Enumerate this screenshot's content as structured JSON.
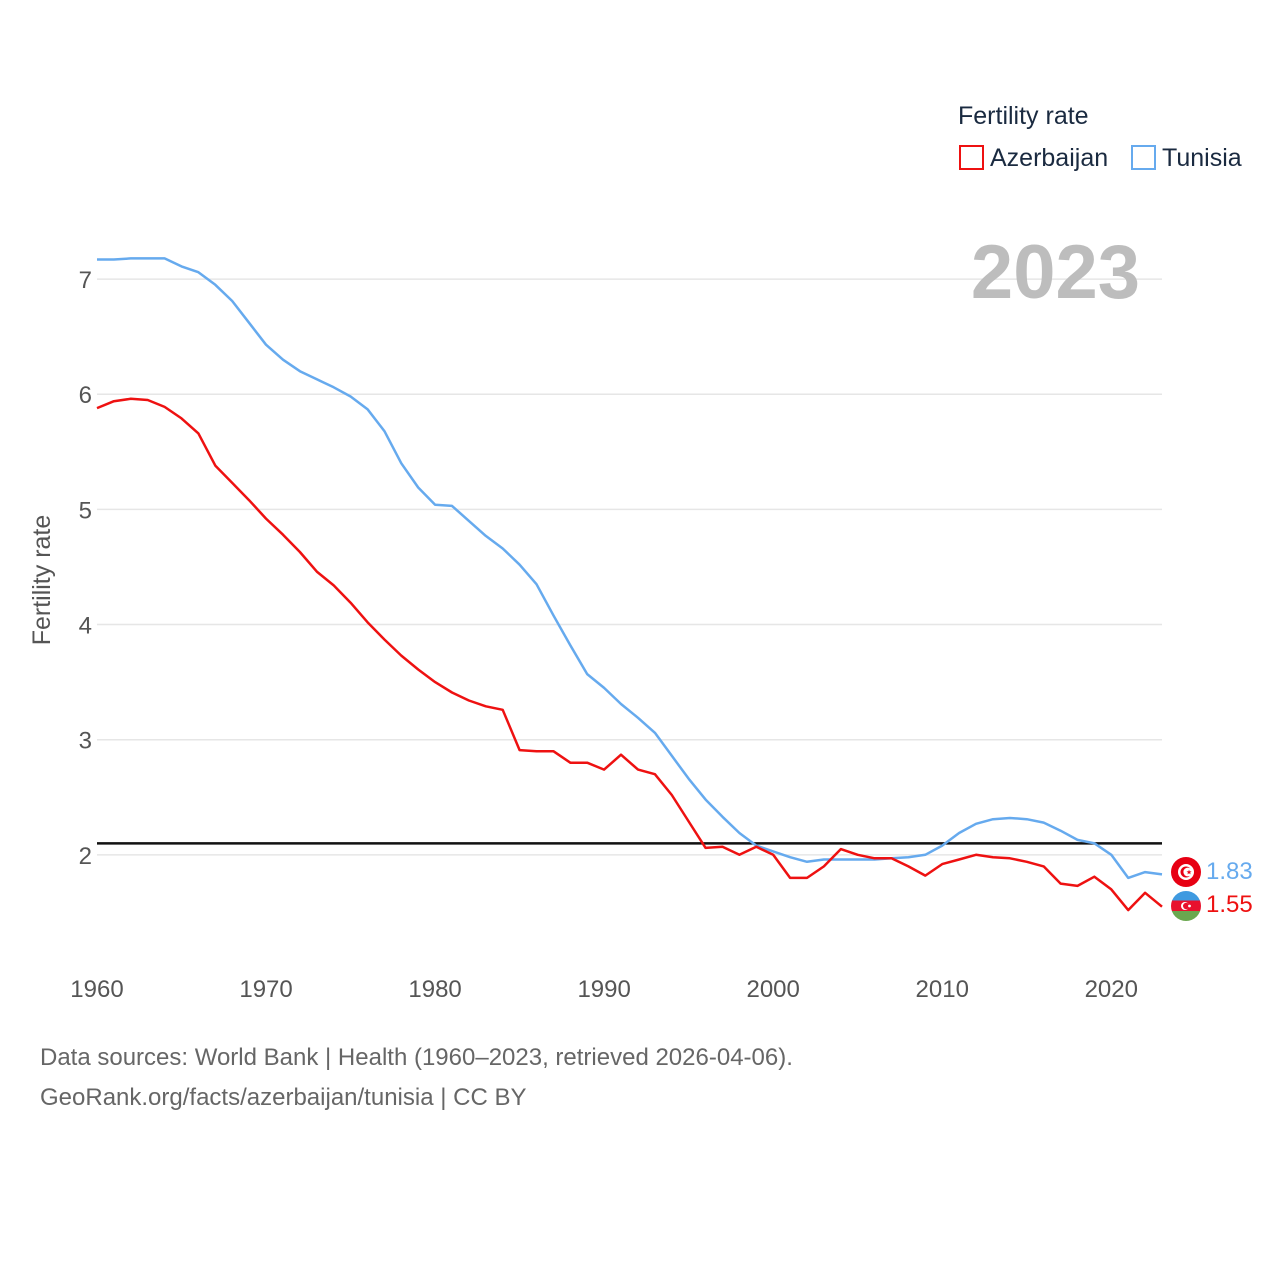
{
  "chart_data": {
    "type": "line",
    "year_label": "2023",
    "ylabel": "Fertility rate",
    "xlim": [
      1960,
      2023
    ],
    "ylim": [
      1.0,
      7.6
    ],
    "x_ticks": [
      1960,
      1970,
      1980,
      1990,
      2000,
      2010,
      2020
    ],
    "y_ticks": [
      2,
      3,
      4,
      5,
      6,
      7
    ],
    "reference_line": 2.1,
    "legend": {
      "title": "Fertility rate",
      "position": "top-right"
    },
    "x": [
      1960,
      1961,
      1962,
      1963,
      1964,
      1965,
      1966,
      1967,
      1968,
      1969,
      1970,
      1971,
      1972,
      1973,
      1974,
      1975,
      1976,
      1977,
      1978,
      1979,
      1980,
      1981,
      1982,
      1983,
      1984,
      1985,
      1986,
      1987,
      1988,
      1989,
      1990,
      1991,
      1992,
      1993,
      1994,
      1995,
      1996,
      1997,
      1998,
      1999,
      2000,
      2001,
      2002,
      2003,
      2004,
      2005,
      2006,
      2007,
      2008,
      2009,
      2010,
      2011,
      2012,
      2013,
      2014,
      2015,
      2016,
      2017,
      2018,
      2019,
      2020,
      2021,
      2022,
      2023
    ],
    "series": [
      {
        "name": "Azerbaijan",
        "color": "#ee1111",
        "end_label": "1.55",
        "values": [
          5.88,
          5.94,
          5.96,
          5.95,
          5.89,
          5.79,
          5.66,
          5.38,
          5.23,
          5.08,
          4.92,
          4.78,
          4.63,
          4.46,
          4.34,
          4.19,
          4.02,
          3.87,
          3.73,
          3.61,
          3.5,
          3.41,
          3.34,
          3.29,
          3.26,
          2.91,
          2.9,
          2.9,
          2.8,
          2.8,
          2.74,
          2.87,
          2.74,
          2.7,
          2.52,
          2.29,
          2.06,
          2.07,
          2.0,
          2.07,
          2.0,
          1.8,
          1.8,
          1.9,
          2.05,
          2.0,
          1.97,
          1.97,
          1.9,
          1.82,
          1.92,
          1.96,
          2.0,
          1.98,
          1.97,
          1.94,
          1.9,
          1.75,
          1.73,
          1.81,
          1.7,
          1.52,
          1.67,
          1.55
        ]
      },
      {
        "name": "Tunisia",
        "color": "#66aaee",
        "end_label": "1.83",
        "values": [
          7.17,
          7.17,
          7.18,
          7.18,
          7.18,
          7.11,
          7.06,
          6.95,
          6.81,
          6.62,
          6.43,
          6.3,
          6.2,
          6.13,
          6.06,
          5.98,
          5.87,
          5.68,
          5.4,
          5.19,
          5.04,
          5.03,
          4.9,
          4.77,
          4.66,
          4.52,
          4.35,
          4.08,
          3.82,
          3.57,
          3.45,
          3.31,
          3.19,
          3.06,
          2.86,
          2.66,
          2.48,
          2.33,
          2.19,
          2.08,
          2.03,
          1.98,
          1.94,
          1.96,
          1.96,
          1.96,
          1.96,
          1.97,
          1.98,
          2.0,
          2.08,
          2.19,
          2.27,
          2.31,
          2.32,
          2.31,
          2.28,
          2.21,
          2.13,
          2.1,
          2.0,
          1.8,
          1.85,
          1.83
        ]
      }
    ]
  },
  "footer": {
    "source_line": "Data sources: World Bank | Health (1960–2023, retrieved 2026-04-06).",
    "credit_line": "GeoRank.org/facts/azerbaijan/tunisia | CC BY"
  }
}
